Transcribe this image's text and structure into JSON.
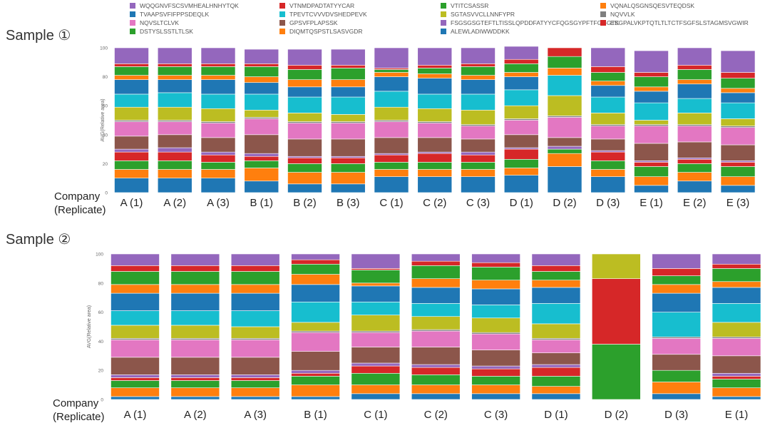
{
  "legend": {
    "items": [
      {
        "label": "WQQGNVFSCSVMHEALHNHYTQK",
        "color": "#9467bd"
      },
      {
        "label": "VTNMDPADTATYYCAR",
        "color": "#d62728"
      },
      {
        "label": "VTITCSASSR",
        "color": "#2ca02c"
      },
      {
        "label": "VQNALQSGNSQESVTEQDSK",
        "color": "#ff7f0e"
      },
      {
        "label": "TVAAPSVFIFPPSDEQLK",
        "color": "#1f77b4"
      },
      {
        "label": "TPEVTCVVVDVSHEDPEVK",
        "color": "#17becf"
      },
      {
        "label": "SGTASVVCLLNNFYPR",
        "color": "#bcbd22"
      },
      {
        "label": "NQVVLK",
        "color": "#7f7f7f"
      },
      {
        "label": "NQVSLTCLVK",
        "color": "#e377c2"
      },
      {
        "label": "GPSVFPLAPSSK",
        "color": "#8c564b"
      },
      {
        "label": "FSGSGSGTEFTLTISSLQPDDFATYYCFQGSGYPFTFGGGTK",
        "color": "#9467bd"
      },
      {
        "label": "ESGPALVKPTQTLTLTCTFSGFSLSTAGMSVGWIR",
        "color": "#d62728"
      },
      {
        "label": "DSTYSLSSTLTLSK",
        "color": "#2ca02c"
      },
      {
        "label": "DIQMTQSPSTLSASVGDR",
        "color": "#ff7f0e"
      },
      {
        "label": "ALEWLADIWWDDKK",
        "color": "#1f77b4"
      }
    ]
  },
  "chart_data": [
    {
      "type": "bar",
      "stacked": true,
      "title": "Sample ①",
      "xlabel": "Company\n(Replicate)",
      "ylabel": "AVG(Relative area)",
      "ylim": [
        0,
        100
      ],
      "yticks": [
        0,
        20,
        40,
        60,
        80,
        100
      ],
      "categories": [
        "A (1)",
        "A (2)",
        "A (3)",
        "B (1)",
        "B (2)",
        "B (3)",
        "C (1)",
        "C (2)",
        "C (3)",
        "D (1)",
        "D (2)",
        "D (3)",
        "E (1)",
        "E (2)",
        "E (3)"
      ],
      "series": [
        {
          "name": "ALEWLADIWWDDKK",
          "color": "#1f77b4",
          "values": [
            10,
            10,
            10,
            8,
            6,
            6,
            11,
            11,
            11,
            12,
            18,
            11,
            5,
            8,
            5
          ]
        },
        {
          "name": "DIQMTQSPSTLSASVGDR",
          "color": "#ff7f0e",
          "values": [
            6,
            6,
            6,
            9,
            8,
            8,
            5,
            5,
            5,
            5,
            9,
            5,
            6,
            6,
            6
          ]
        },
        {
          "name": "DSTYSLSSTLTLSK",
          "color": "#2ca02c",
          "values": [
            6,
            6,
            5,
            5,
            6,
            6,
            5,
            5,
            5,
            6,
            3,
            6,
            7,
            6,
            7
          ]
        },
        {
          "name": "ESGPALVKPTQTLTLTCTFSGFSLSTAGMSVGWIR",
          "color": "#d62728",
          "values": [
            6,
            6,
            5,
            3,
            4,
            4,
            5,
            6,
            5,
            7,
            0,
            6,
            3,
            3,
            3
          ]
        },
        {
          "name": "FSGSGSGTEFTLTISSLQPDDFATYYCFQGSGYPFTFGGGTK",
          "color": "#9467bd",
          "values": [
            2,
            3,
            2,
            2,
            1,
            1,
            1,
            1,
            2,
            1,
            2,
            1,
            1,
            1,
            1
          ]
        },
        {
          "name": "GPSVFPLAPSSK",
          "color": "#8c564b",
          "values": [
            9,
            9,
            10,
            13,
            12,
            12,
            11,
            10,
            9,
            9,
            6,
            8,
            12,
            11,
            11
          ]
        },
        {
          "name": "NQVSLTCLVK",
          "color": "#e377c2",
          "values": [
            10,
            9,
            10,
            11,
            11,
            11,
            11,
            10,
            9,
            10,
            14,
            9,
            12,
            11,
            12
          ]
        },
        {
          "name": "NQVVLK",
          "color": "#7f7f7f",
          "values": [
            1,
            1,
            1,
            1,
            1,
            1,
            1,
            1,
            1,
            1,
            1,
            1,
            1,
            1,
            1
          ]
        },
        {
          "name": "SGTASVVCLLNNFYPR",
          "color": "#bcbd22",
          "values": [
            9,
            9,
            9,
            5,
            6,
            5,
            9,
            9,
            10,
            9,
            14,
            8,
            3,
            8,
            5
          ]
        },
        {
          "name": "TPEVTCVVVDVSHEDPEVK",
          "color": "#17becf",
          "values": [
            9,
            10,
            10,
            11,
            11,
            12,
            11,
            10,
            11,
            11,
            14,
            11,
            12,
            10,
            11
          ]
        },
        {
          "name": "TVAAPSVFIFPPSDEQLK",
          "color": "#1f77b4",
          "values": [
            10,
            9,
            10,
            8,
            7,
            7,
            10,
            11,
            10,
            9,
            0,
            8,
            8,
            10,
            7
          ]
        },
        {
          "name": "VQNALQSGNSQESVTEQDSK",
          "color": "#ff7f0e",
          "values": [
            3,
            3,
            3,
            4,
            5,
            5,
            3,
            3,
            3,
            3,
            5,
            3,
            3,
            3,
            3
          ]
        },
        {
          "name": "VTITCSASSR",
          "color": "#2ca02c",
          "values": [
            6,
            6,
            6,
            7,
            7,
            8,
            2,
            4,
            6,
            6,
            8,
            6,
            7,
            7,
            7
          ]
        },
        {
          "name": "VTNMDPADTATYYCAR",
          "color": "#d62728",
          "values": [
            2,
            2,
            2,
            2,
            3,
            2,
            1,
            2,
            2,
            3,
            6,
            4,
            3,
            3,
            4
          ]
        },
        {
          "name": "WQQGNVFSCSVMHEALHNHYTQK",
          "color": "#9467bd",
          "values": [
            11,
            11,
            11,
            10,
            11,
            11,
            14,
            12,
            11,
            9,
            0,
            13,
            15,
            12,
            15
          ]
        }
      ]
    },
    {
      "type": "bar",
      "stacked": true,
      "title": "Sample ②",
      "xlabel": "Company\n(Replicate)",
      "ylabel": "AVG(Relative area)",
      "ylim": [
        0,
        100
      ],
      "yticks": [
        0,
        20,
        40,
        60,
        80,
        100
      ],
      "categories": [
        "A (1)",
        "A (2)",
        "A (3)",
        "B (1)",
        "C (1)",
        "C (2)",
        "C (3)",
        "D (1)",
        "D (2)",
        "D (3)",
        "E (1)"
      ],
      "series": [
        {
          "name": "ALEWLADIWWDDKK",
          "color": "#1f77b4",
          "values": [
            2,
            2,
            2,
            2,
            4,
            4,
            4,
            4,
            0,
            4,
            2
          ]
        },
        {
          "name": "DIQMTQSPSTLSASVGDR",
          "color": "#ff7f0e",
          "values": [
            6,
            6,
            6,
            8,
            6,
            6,
            6,
            5,
            0,
            8,
            6
          ]
        },
        {
          "name": "DSTYSLSSTLTLSK",
          "color": "#2ca02c",
          "values": [
            5,
            5,
            5,
            6,
            8,
            7,
            6,
            7,
            38,
            8,
            6
          ]
        },
        {
          "name": "ESGPALVKPTQTLTLTCTFSGFSLSTAGMSVGWIR",
          "color": "#d62728",
          "values": [
            2,
            2,
            2,
            2,
            5,
            5,
            5,
            6,
            45,
            0,
            2
          ]
        },
        {
          "name": "FSGSGSGTEFTLTISSLQPDDFATYYCFQGSGYPFTFGGGTK",
          "color": "#9467bd",
          "values": [
            2,
            2,
            2,
            2,
            2,
            2,
            2,
            2,
            0,
            0,
            2
          ]
        },
        {
          "name": "GPSVFPLAPSSK",
          "color": "#8c564b",
          "values": [
            12,
            12,
            12,
            13,
            11,
            12,
            11,
            8,
            0,
            11,
            12
          ]
        },
        {
          "name": "NQVSLTCLVK",
          "color": "#e377c2",
          "values": [
            12,
            12,
            12,
            13,
            10,
            11,
            11,
            9,
            0,
            11,
            12
          ]
        },
        {
          "name": "NQVVLK",
          "color": "#7f7f7f",
          "values": [
            1,
            1,
            1,
            1,
            1,
            1,
            1,
            1,
            0,
            1,
            1
          ]
        },
        {
          "name": "SGTASVVCLLNNFYPR",
          "color": "#bcbd22",
          "values": [
            9,
            9,
            8,
            6,
            11,
            9,
            10,
            10,
            17,
            0,
            10
          ]
        },
        {
          "name": "TPEVTCVVVDVSHEDPEVK",
          "color": "#17becf",
          "values": [
            10,
            10,
            11,
            14,
            9,
            9,
            9,
            14,
            0,
            17,
            13
          ]
        },
        {
          "name": "TVAAPSVFIFPPSDEQLK",
          "color": "#1f77b4",
          "values": [
            12,
            12,
            12,
            12,
            11,
            11,
            11,
            11,
            0,
            13,
            11
          ]
        },
        {
          "name": "VQNALQSGNSQESVTEQDSK",
          "color": "#ff7f0e",
          "values": [
            6,
            6,
            6,
            7,
            2,
            6,
            6,
            5,
            0,
            6,
            4
          ]
        },
        {
          "name": "VTITCSASSR",
          "color": "#2ca02c",
          "values": [
            9,
            9,
            9,
            7,
            9,
            9,
            9,
            6,
            0,
            6,
            9
          ]
        },
        {
          "name": "VTNMDPADTATYYCAR",
          "color": "#d62728",
          "values": [
            4,
            4,
            4,
            3,
            1,
            3,
            3,
            4,
            0,
            5,
            3
          ]
        },
        {
          "name": "WQQGNVFSCSVMHEALHNHYTQK",
          "color": "#9467bd",
          "values": [
            8,
            8,
            8,
            4,
            10,
            5,
            6,
            8,
            0,
            10,
            7
          ]
        }
      ]
    }
  ]
}
